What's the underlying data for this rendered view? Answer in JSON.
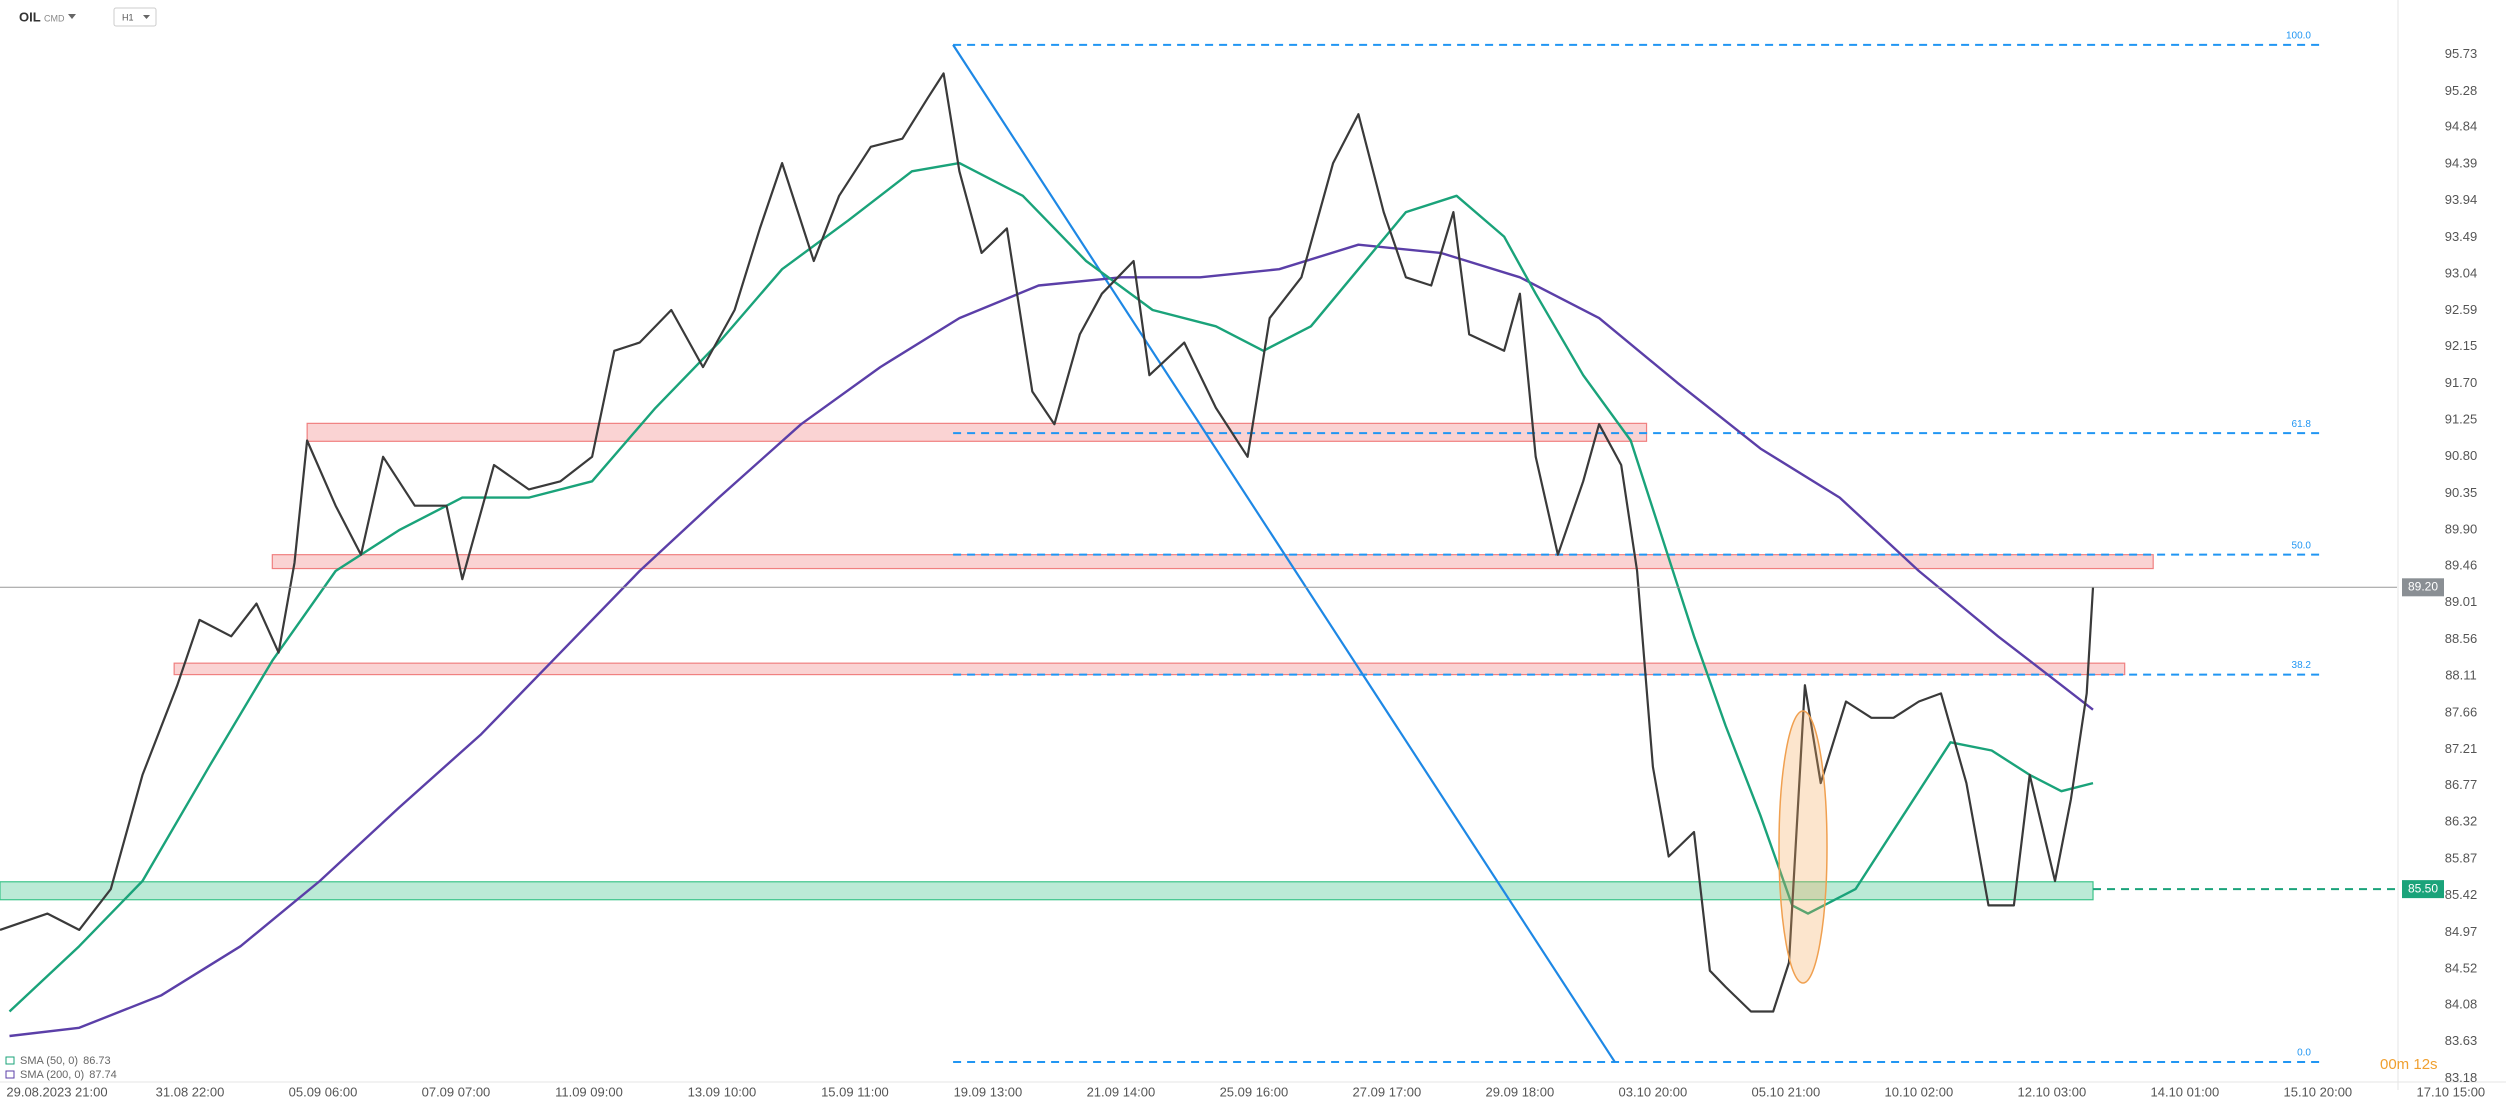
{
  "chart_data": {
    "type": "line",
    "instrument_class": "CMD",
    "timeframe": "H1",
    "xlim": [
      0,
      757
    ],
    "ylim": [
      83.16,
      96.4
    ],
    "xticks": [
      {
        "value": 18,
        "label": "29.08.2023 21:00"
      },
      {
        "value": 60,
        "label": "31.08 22:00"
      },
      {
        "value": 102,
        "label": "05.09 06:00"
      },
      {
        "value": 144,
        "label": "07.09 07:00"
      },
      {
        "value": 186,
        "label": "11.09 09:00"
      },
      {
        "value": 228,
        "label": "13.09 10:00"
      },
      {
        "value": 270,
        "label": "15.09 11:00"
      },
      {
        "value": 312,
        "label": "19.09 13:00"
      },
      {
        "value": 354,
        "label": "21.09 14:00"
      },
      {
        "value": 396,
        "label": "25.09 16:00"
      },
      {
        "value": 438,
        "label": "27.09 17:00"
      },
      {
        "value": 480,
        "label": "29.09 18:00"
      },
      {
        "value": 522,
        "label": "03.10 20:00"
      },
      {
        "value": 564,
        "label": "05.10 21:00"
      },
      {
        "value": 606,
        "label": "10.10 02:00"
      },
      {
        "value": 648,
        "label": "12.10 03:00"
      },
      {
        "value": 690,
        "label": "14.10 01:00"
      },
      {
        "value": 732,
        "label": "15.10 20:00"
      },
      {
        "value": 774,
        "label": "17.10 15:00"
      }
    ],
    "yticks": [
      95.73,
      95.28,
      94.84,
      94.39,
      93.94,
      93.49,
      93.04,
      92.59,
      92.15,
      {
        "value": 91.7,
        "label": "91.70"
      },
      91.25,
      {
        "value": 90.8,
        "label": "90.80"
      },
      90.35,
      {
        "value": 89.9,
        "label": "89.90"
      },
      89.46,
      89.01,
      88.56,
      88.11,
      87.66,
      87.21,
      86.77,
      86.32,
      85.87,
      85.42,
      84.97,
      84.52,
      84.08,
      83.63,
      83.18
    ],
    "series": [
      {
        "name": "OIL",
        "color": "#3a3a3a",
        "x": [
          0,
          15,
          25,
          35,
          45,
          56,
          63,
          73,
          81,
          88,
          93,
          97,
          106,
          114,
          121,
          131,
          141,
          146,
          156,
          167,
          177,
          187,
          194,
          202,
          212,
          222,
          232,
          240,
          247,
          257,
          265,
          275,
          285,
          293,
          298,
          303,
          310,
          318,
          326,
          333,
          341,
          348,
          358,
          363,
          374,
          384,
          394,
          401,
          411,
          421,
          429,
          437,
          444,
          452,
          459,
          464,
          475,
          480,
          485,
          492,
          500,
          505,
          512,
          517,
          522,
          527,
          535,
          540,
          545,
          553,
          560,
          565,
          570,
          575,
          583,
          591,
          598,
          606,
          613,
          621,
          628,
          636,
          641,
          649,
          654,
          659,
          661
        ],
        "values": [
          85.0,
          85.2,
          85.0,
          85.5,
          86.9,
          88.0,
          88.8,
          88.6,
          89.0,
          88.4,
          89.5,
          91.0,
          90.2,
          89.6,
          90.8,
          90.2,
          90.2,
          89.3,
          90.7,
          90.4,
          90.5,
          90.8,
          92.1,
          92.2,
          92.6,
          91.9,
          92.6,
          93.6,
          94.4,
          93.2,
          94.0,
          94.6,
          94.7,
          95.2,
          95.5,
          94.3,
          93.3,
          93.6,
          91.6,
          91.2,
          92.3,
          92.8,
          93.2,
          91.8,
          92.2,
          91.4,
          90.8,
          92.5,
          93.0,
          94.4,
          95.0,
          93.8,
          93.0,
          92.9,
          93.8,
          92.3,
          92.1,
          92.8,
          90.8,
          89.6,
          90.5,
          91.2,
          90.7,
          89.4,
          87.0,
          85.9,
          86.2,
          84.5,
          84.3,
          84.0,
          84.0,
          84.6,
          88.0,
          86.8,
          87.8,
          87.6,
          87.6,
          87.8,
          87.9,
          86.8,
          85.3,
          85.3,
          86.9,
          85.6,
          86.6,
          87.9,
          89.2
        ]
      },
      {
        "name": "SMA (50, 0)",
        "color": "#1aa37a",
        "last": 86.73,
        "x": [
          3,
          25,
          45,
          66,
          86,
          106,
          126,
          146,
          167,
          187,
          207,
          227,
          247,
          268,
          288,
          303,
          323,
          343,
          364,
          384,
          399,
          414,
          429,
          444,
          460,
          475,
          485,
          500,
          515,
          525,
          535,
          545,
          556,
          566,
          571,
          586,
          601,
          616,
          629,
          641,
          651,
          661
        ],
        "values": [
          84.0,
          84.8,
          85.6,
          87.0,
          88.3,
          89.4,
          89.9,
          90.3,
          90.3,
          90.5,
          91.4,
          92.2,
          93.1,
          93.7,
          94.3,
          94.4,
          94.0,
          93.2,
          92.6,
          92.4,
          92.1,
          92.4,
          93.1,
          93.8,
          94.0,
          93.5,
          92.8,
          91.8,
          91.0,
          89.8,
          88.6,
          87.5,
          86.4,
          85.3,
          85.2,
          85.5,
          86.4,
          87.3,
          87.2,
          86.9,
          86.7,
          86.8
        ]
      },
      {
        "name": "SMA (200, 0)",
        "color": "#5b3fa8",
        "last": 87.74,
        "x": [
          3,
          25,
          51,
          76,
          101,
          126,
          152,
          177,
          202,
          227,
          253,
          278,
          303,
          328,
          354,
          379,
          404,
          429,
          455,
          480,
          505,
          530,
          556,
          581,
          606,
          631,
          651,
          661
        ],
        "values": [
          83.7,
          83.8,
          84.2,
          84.8,
          85.6,
          86.5,
          87.4,
          88.4,
          89.4,
          90.3,
          91.2,
          91.9,
          92.5,
          92.9,
          93.0,
          93.0,
          93.1,
          93.4,
          93.3,
          93.0,
          92.5,
          91.7,
          90.9,
          90.3,
          89.4,
          88.6,
          88.0,
          87.7
        ]
      }
    ],
    "last_price": {
      "value": 89.2,
      "label": "89.20"
    },
    "support_level": {
      "value": 85.5,
      "label": "85.50",
      "x_start": 661
    },
    "zones": [
      {
        "x_start": 97,
        "x_end": 520,
        "low": 90.99,
        "high": 91.21,
        "color": "#f08080"
      },
      {
        "x_start": 86,
        "x_end": 680,
        "low": 89.43,
        "high": 89.6,
        "color": "#f08080"
      },
      {
        "x_start": 55,
        "x_end": 671,
        "low": 88.13,
        "high": 88.27,
        "color": "#f08080"
      },
      {
        "x_start": 0,
        "x_end": 661,
        "low": 85.37,
        "high": 85.59,
        "color": "#3cc48a"
      }
    ],
    "fib": {
      "x_start": 301,
      "x_end": 733,
      "levels": [
        {
          "label": "100.0",
          "value": 95.85
        },
        {
          "label": "61.8",
          "value": 91.09
        },
        {
          "label": "50.0",
          "value": 89.6
        },
        {
          "label": "38.2",
          "value": 88.13
        },
        {
          "label": "0.0",
          "value": 83.38
        }
      ]
    },
    "trendline": {
      "x": [
        301,
        510
      ],
      "values": [
        95.85,
        83.38
      ]
    },
    "timer": "00m 12s"
  }
}
